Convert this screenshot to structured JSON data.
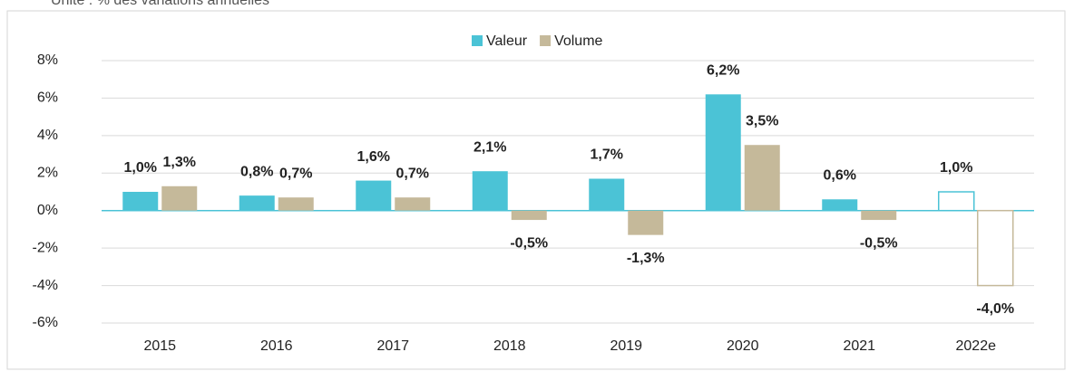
{
  "chart_data": {
    "type": "bar",
    "subtitle": "Unité : % des variations annuelles",
    "categories": [
      "2015",
      "2016",
      "2017",
      "2018",
      "2019",
      "2020",
      "2021",
      "2022e"
    ],
    "series": [
      {
        "name": "Valeur",
        "color": "#4bc3d6",
        "values": [
          1.0,
          0.8,
          1.6,
          2.1,
          1.7,
          6.2,
          0.6,
          1.0
        ],
        "value_labels": [
          "1,0%",
          "0,8%",
          "1,6%",
          "2,1%",
          "1,7%",
          "6,2%",
          "0,6%",
          "1,0%"
        ]
      },
      {
        "name": "Volume",
        "color": "#c5b99a",
        "values": [
          1.3,
          0.7,
          0.7,
          -0.5,
          -1.3,
          3.5,
          -0.5,
          -4.0
        ],
        "value_labels": [
          "1,3%",
          "0,7%",
          "0,7%",
          "-0,5%",
          "-1,3%",
          "3,5%",
          "-0,5%",
          "-4,0%"
        ]
      }
    ],
    "hollow": [
      false,
      false,
      false,
      false,
      false,
      false,
      false,
      true
    ],
    "ylim": [
      -6,
      8
    ],
    "yticks": [
      {
        "value": -6,
        "label": "-6%"
      },
      {
        "value": -4,
        "label": "-4%"
      },
      {
        "value": -2,
        "label": "-2%"
      },
      {
        "value": 0,
        "label": "0%"
      },
      {
        "value": 2,
        "label": "2%"
      },
      {
        "value": 4,
        "label": "4%"
      },
      {
        "value": 6,
        "label": "6%"
      },
      {
        "value": 8,
        "label": "8%"
      }
    ],
    "grid": true,
    "legend": "top"
  }
}
